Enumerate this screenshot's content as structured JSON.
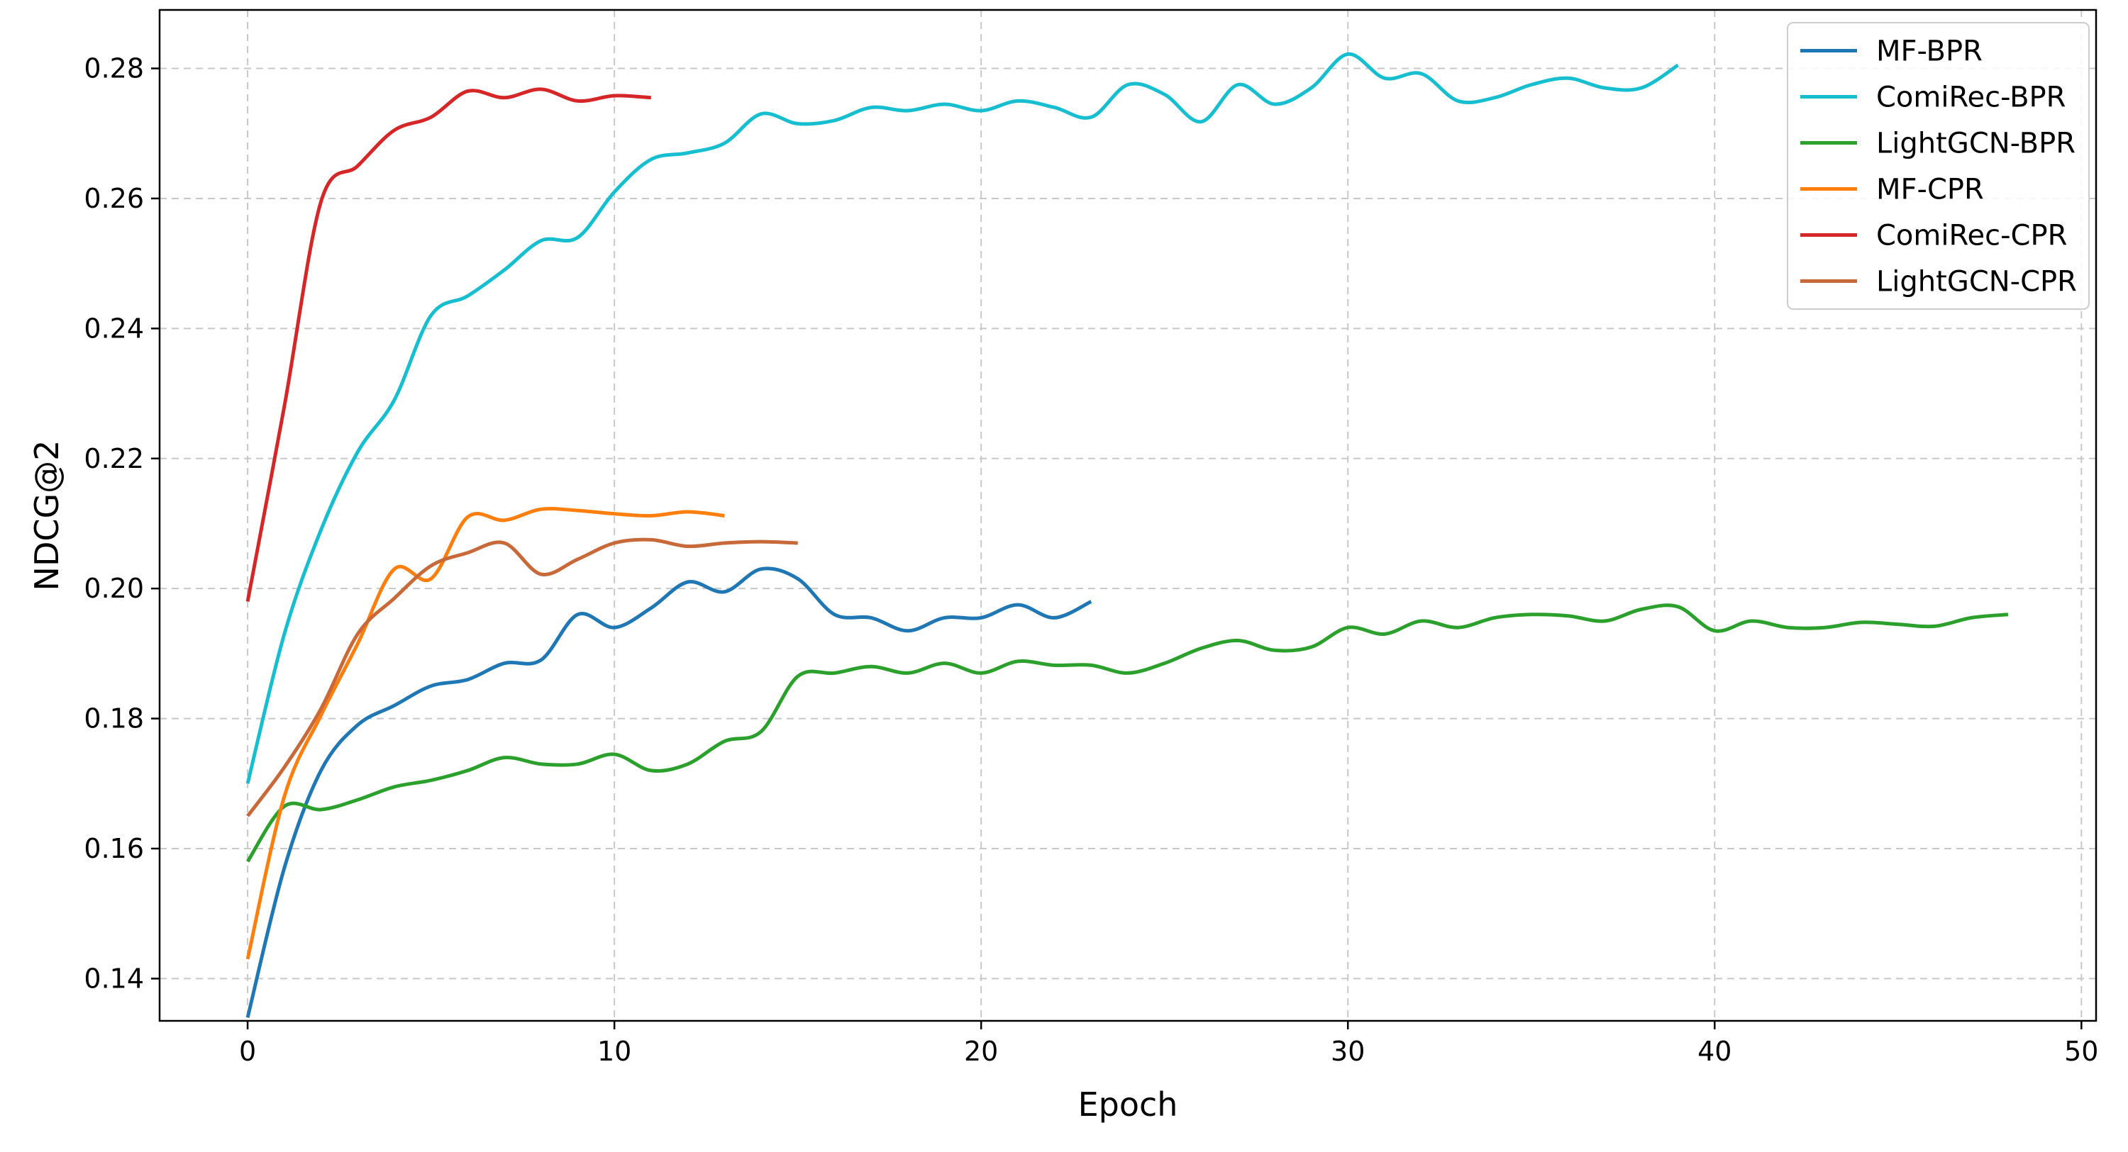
{
  "chart_data": {
    "type": "line",
    "title": "",
    "xlabel": "Epoch",
    "ylabel": "NDCG@2",
    "xlim": [
      -2.4,
      50.4
    ],
    "ylim": [
      0.1335,
      0.289
    ],
    "xticks": [
      0,
      10,
      20,
      30,
      40,
      50
    ],
    "yticks": [
      0.14,
      0.16,
      0.18,
      0.2,
      0.22,
      0.24,
      0.26,
      0.28
    ],
    "ytick_labels": [
      "0.14",
      "0.16",
      "0.18",
      "0.20",
      "0.22",
      "0.24",
      "0.26",
      "0.28"
    ],
    "grid": true,
    "legend_position": "top-right",
    "series": [
      {
        "name": "MF-BPR",
        "color": "#1f77b4",
        "x": [
          0,
          1,
          2,
          3,
          4,
          5,
          6,
          7,
          8,
          9,
          10,
          11,
          12,
          13,
          14,
          15,
          16,
          17,
          18,
          19,
          20,
          21,
          22,
          23
        ],
        "y": [
          0.134,
          0.157,
          0.172,
          0.179,
          0.182,
          0.185,
          0.186,
          0.1885,
          0.189,
          0.196,
          0.194,
          0.197,
          0.201,
          0.1995,
          0.203,
          0.2015,
          0.196,
          0.1955,
          0.1935,
          0.1955,
          0.1955,
          0.1975,
          0.1955,
          0.198
        ]
      },
      {
        "name": "ComiRec-BPR",
        "color": "#17becf",
        "x": [
          0,
          1,
          2,
          3,
          4,
          5,
          6,
          7,
          8,
          9,
          10,
          11,
          12,
          13,
          14,
          15,
          16,
          17,
          18,
          19,
          20,
          21,
          22,
          23,
          24,
          25,
          26,
          27,
          28,
          29,
          30,
          31,
          32,
          33,
          34,
          35,
          36,
          37,
          38,
          39
        ],
        "y": [
          0.17,
          0.193,
          0.209,
          0.221,
          0.229,
          0.242,
          0.245,
          0.249,
          0.2535,
          0.254,
          0.261,
          0.266,
          0.267,
          0.2685,
          0.273,
          0.2715,
          0.272,
          0.274,
          0.2735,
          0.2745,
          0.2735,
          0.275,
          0.274,
          0.2725,
          0.2775,
          0.276,
          0.2718,
          0.2775,
          0.2745,
          0.277,
          0.2822,
          0.2785,
          0.2792,
          0.275,
          0.2755,
          0.2775,
          0.2785,
          0.277,
          0.277,
          0.2805
        ]
      },
      {
        "name": "LightGCN-BPR",
        "color": "#2ca02c",
        "x": [
          0,
          1,
          2,
          3,
          4,
          5,
          6,
          7,
          8,
          9,
          10,
          11,
          12,
          13,
          14,
          15,
          16,
          17,
          18,
          19,
          20,
          21,
          22,
          23,
          24,
          25,
          26,
          27,
          28,
          29,
          30,
          31,
          32,
          33,
          34,
          35,
          36,
          37,
          38,
          39,
          40,
          41,
          42,
          43,
          44,
          45,
          46,
          47,
          48
        ],
        "y": [
          0.158,
          0.1665,
          0.166,
          0.1675,
          0.1695,
          0.1705,
          0.172,
          0.174,
          0.173,
          0.173,
          0.1745,
          0.172,
          0.173,
          0.1765,
          0.178,
          0.1865,
          0.187,
          0.188,
          0.187,
          0.1885,
          0.187,
          0.1888,
          0.1882,
          0.1882,
          0.187,
          0.1885,
          0.1908,
          0.192,
          0.1905,
          0.191,
          0.194,
          0.193,
          0.195,
          0.194,
          0.1955,
          0.196,
          0.1958,
          0.195,
          0.1968,
          0.1972,
          0.1935,
          0.195,
          0.194,
          0.194,
          0.1948,
          0.1945,
          0.1942,
          0.1955,
          0.196
        ]
      },
      {
        "name": "MF-CPR",
        "color": "#ff7f0e",
        "x": [
          0,
          1,
          2,
          3,
          4,
          5,
          6,
          7,
          8,
          9,
          10,
          11,
          12,
          13
        ],
        "y": [
          0.143,
          0.168,
          0.1805,
          0.1915,
          0.203,
          0.2015,
          0.211,
          0.2105,
          0.2122,
          0.212,
          0.2115,
          0.2112,
          0.2118,
          0.2112
        ]
      },
      {
        "name": "ComiRec-CPR",
        "color": "#d62728",
        "x": [
          0,
          1,
          2,
          3,
          4,
          5,
          6,
          7,
          8,
          9,
          10,
          11
        ],
        "y": [
          0.198,
          0.228,
          0.2595,
          0.265,
          0.2705,
          0.2725,
          0.2765,
          0.2755,
          0.2768,
          0.275,
          0.2758,
          0.2755
        ]
      },
      {
        "name": "LightGCN-CPR",
        "color": "#c8693a",
        "x": [
          0,
          1,
          2,
          3,
          4,
          5,
          6,
          7,
          8,
          9,
          10,
          11,
          12,
          13,
          14,
          15
        ],
        "y": [
          0.165,
          0.1725,
          0.1815,
          0.193,
          0.1985,
          0.2035,
          0.2055,
          0.207,
          0.2022,
          0.2045,
          0.207,
          0.2075,
          0.2065,
          0.207,
          0.2072,
          0.207
        ]
      }
    ]
  }
}
